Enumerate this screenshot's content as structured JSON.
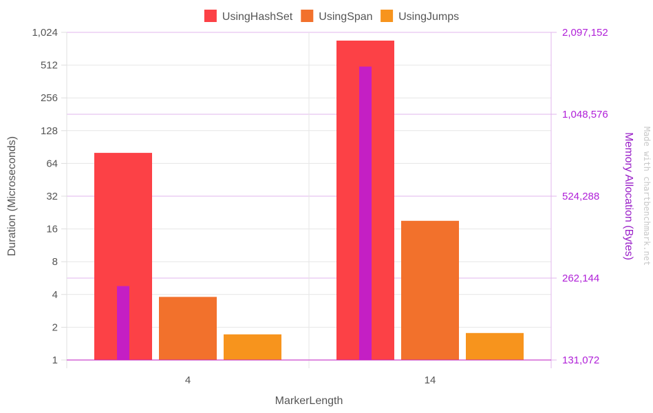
{
  "chart_data": {
    "type": "bar",
    "categories": [
      "4",
      "14"
    ],
    "xlabel": "MarkerLength",
    "ylabel": "Duration (Microseconds)",
    "y2label": "Memory Allocation (Bytes)",
    "y_scale": "log2",
    "ylim": [
      1,
      1024
    ],
    "y2_scale": "log2",
    "y2lim": [
      131072,
      2097152
    ],
    "yticks": [
      1,
      2,
      4,
      8,
      16,
      32,
      64,
      128,
      256,
      512,
      1024
    ],
    "ytick_labels": [
      "1",
      "2",
      "4",
      "8",
      "16",
      "32",
      "64",
      "128",
      "256",
      "512",
      "1,024"
    ],
    "y2ticks": [
      131072,
      262144,
      524288,
      1048576,
      2097152
    ],
    "y2tick_labels": [
      "131,072",
      "262,144",
      "524,288",
      "1,048,576",
      "2,097,152"
    ],
    "legend_position": "top",
    "series": [
      {
        "name": "UsingHashSet",
        "color": "#fc4146",
        "values": [
          80,
          860
        ]
      },
      {
        "name": "UsingSpan",
        "color": "#f2712c",
        "values": [
          3.8,
          19
        ]
      },
      {
        "name": "UsingJumps",
        "color": "#f7941d",
        "values": [
          1.72,
          1.77
        ]
      }
    ],
    "memory_series": {
      "color": "#c41fc4",
      "values": [
        245000,
        1570000
      ]
    },
    "watermark": "Made with chartbenchmark.net"
  }
}
